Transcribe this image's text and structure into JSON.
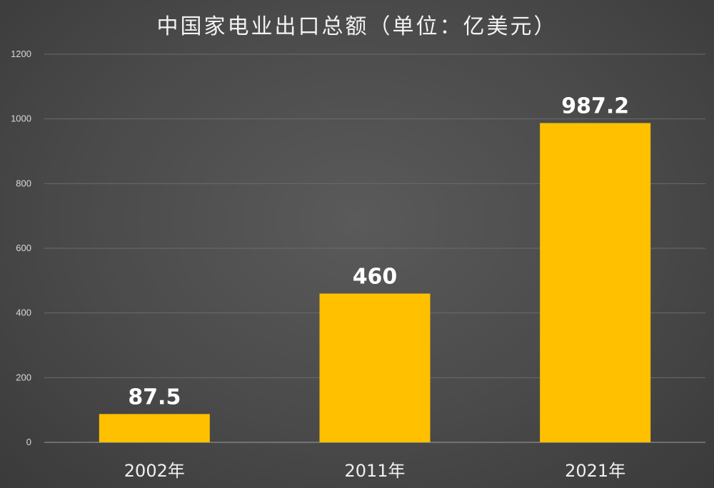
{
  "chart_data": {
    "type": "bar",
    "title": "中国家电业出口总额（单位：亿美元）",
    "categories": [
      "2002年",
      "2011年",
      "2021年"
    ],
    "values": [
      87.5,
      460,
      987.2
    ],
    "data_labels": [
      "87.5",
      "460",
      "987.2"
    ],
    "ylim": [
      0,
      1200
    ],
    "yticks": [
      0,
      200,
      400,
      600,
      800,
      1000,
      1200
    ],
    "xlabel": "",
    "ylabel": "",
    "grid": true,
    "legend": "none",
    "bar_color": "#FFC000",
    "background_color": "#474747"
  }
}
